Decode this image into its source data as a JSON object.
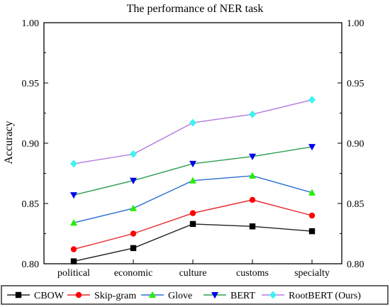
{
  "chart_data": {
    "type": "line",
    "title": "The performance of NER task",
    "xlabel": "",
    "ylabel": "Accuracy",
    "categories": [
      "political",
      "economic",
      "culture",
      "customs",
      "specialty"
    ],
    "ylim": [
      0.8,
      1.0
    ],
    "yticks": [
      "0.80",
      "0.85",
      "0.90",
      "0.95",
      "1.00"
    ],
    "grid": false,
    "legend_placement": "bottom",
    "series": [
      {
        "name": "CBOW",
        "color": "#222222",
        "marker": "square",
        "values": [
          0.802,
          0.813,
          0.833,
          0.831,
          0.827
        ]
      },
      {
        "name": "Skip-gram",
        "color": "#e8262a",
        "marker": "circle",
        "values": [
          0.812,
          0.825,
          0.842,
          0.853,
          0.84
        ]
      },
      {
        "name": "Glove",
        "color": "#2a6fd0",
        "marker": "triangle-up",
        "values": [
          0.834,
          0.846,
          0.869,
          0.873,
          0.859
        ]
      },
      {
        "name": "BERT",
        "color": "#2e9d55",
        "marker": "triangle-down",
        "values": [
          0.857,
          0.869,
          0.883,
          0.889,
          0.897
        ]
      },
      {
        "name": "RootBERT (Ours)",
        "color": "#b57be0",
        "marker": "diamond",
        "values": [
          0.883,
          0.891,
          0.917,
          0.924,
          0.936
        ]
      }
    ],
    "marker_colors": {
      "CBOW": "#000000",
      "Skip-gram": "#ff0000",
      "Glove": "#22ee00",
      "BERT": "#0000ee",
      "RootBERT (Ours)": "#3ff2f2"
    }
  }
}
